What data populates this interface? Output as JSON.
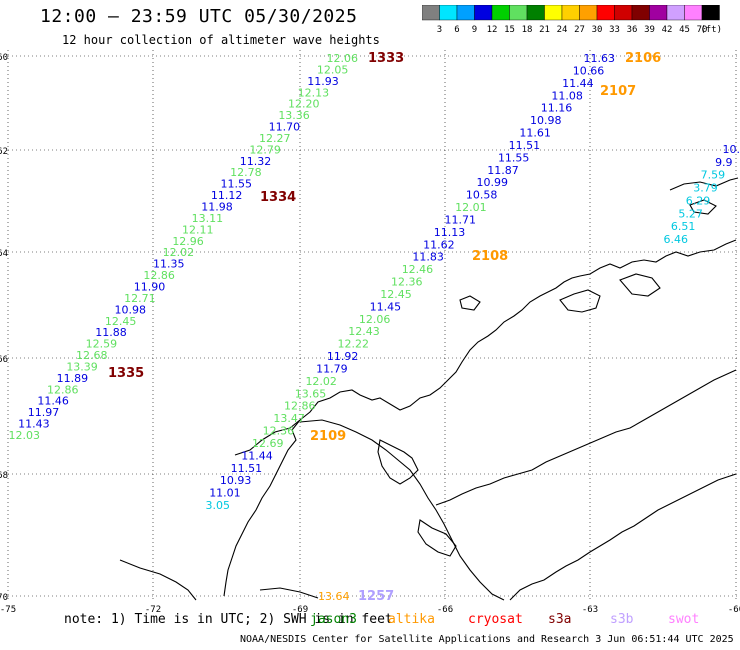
{
  "header": {
    "title": "12:00 — 23:59 UTC 05/30/2025",
    "subtitle": "12 hour collection of altimeter wave heights"
  },
  "legend": {
    "unit": "(ft)",
    "bins": [
      {
        "label": "3",
        "color": "#808080"
      },
      {
        "label": "6",
        "color": "#00e5ff"
      },
      {
        "label": "9",
        "color": "#00a0ff"
      },
      {
        "label": "12",
        "color": "#0000e0"
      },
      {
        "label": "15",
        "color": "#00d000"
      },
      {
        "label": "18",
        "color": "#60e060"
      },
      {
        "label": "21",
        "color": "#008000"
      },
      {
        "label": "24",
        "color": "#ffff00"
      },
      {
        "label": "27",
        "color": "#ffd000"
      },
      {
        "label": "30",
        "color": "#ffa000"
      },
      {
        "label": "33",
        "color": "#ff0000"
      },
      {
        "label": "36",
        "color": "#d00000"
      },
      {
        "label": "39",
        "color": "#800000"
      },
      {
        "label": "42",
        "color": "#a000a0"
      },
      {
        "label": "45",
        "color": "#d0a0ff"
      },
      {
        "label": "70",
        "color": "#ff80ff"
      },
      {
        "label": "",
        "color": "#000000"
      }
    ]
  },
  "axes": {
    "lat_labels": [
      "-60",
      "-62",
      "-64",
      "-66",
      "-68",
      "-70"
    ],
    "lon_labels": [
      "-75",
      "-72",
      "-69",
      "-66",
      "-63",
      "-60"
    ]
  },
  "tracks": [
    {
      "label": "1333",
      "color": "#800000"
    },
    {
      "label": "1334",
      "color": "#800000"
    },
    {
      "label": "1335",
      "color": "#800000"
    },
    {
      "label": "2106",
      "color": "#ff9900"
    },
    {
      "label": "2107",
      "color": "#ff9900"
    },
    {
      "label": "2108",
      "color": "#ff9900"
    },
    {
      "label": "2109",
      "color": "#ff9900"
    },
    {
      "label": "1257",
      "color": "#b0a0ff"
    }
  ],
  "readings_track1": [
    [
      "12.06",
      "#60e060"
    ],
    [
      "12.05",
      "#60e060"
    ],
    [
      "11.93",
      "#0000e0"
    ],
    [
      "12.13",
      "#60e060"
    ],
    [
      "12.20",
      "#60e060"
    ],
    [
      "13.36",
      "#60e060"
    ],
    [
      "11.70",
      "#0000e0"
    ],
    [
      "12.27",
      "#60e060"
    ],
    [
      "12.79",
      "#60e060"
    ],
    [
      "11.32",
      "#0000e0"
    ],
    [
      "12.78",
      "#60e060"
    ],
    [
      "11.55",
      "#0000e0"
    ],
    [
      "11.12",
      "#0000e0"
    ],
    [
      "11.98",
      "#0000e0"
    ],
    [
      "13.11",
      "#60e060"
    ],
    [
      "12.11",
      "#60e060"
    ],
    [
      "12.96",
      "#60e060"
    ],
    [
      "12.02",
      "#60e060"
    ],
    [
      "11.35",
      "#0000e0"
    ],
    [
      "12.86",
      "#60e060"
    ],
    [
      "11.90",
      "#0000e0"
    ],
    [
      "12.71",
      "#60e060"
    ],
    [
      "10.98",
      "#0000e0"
    ],
    [
      "12.45",
      "#60e060"
    ],
    [
      "11.88",
      "#0000e0"
    ],
    [
      "12.59",
      "#60e060"
    ],
    [
      "12.68",
      "#60e060"
    ],
    [
      "13.39",
      "#60e060"
    ],
    [
      "11.89",
      "#0000e0"
    ],
    [
      "12.86",
      "#60e060"
    ],
    [
      "11.46",
      "#0000e0"
    ],
    [
      "11.97",
      "#0000e0"
    ],
    [
      "11.43",
      "#0000e0"
    ],
    [
      "12.03",
      "#60e060"
    ]
  ],
  "readings_track2": [
    [
      "11.63",
      "#0000e0"
    ],
    [
      "10.66",
      "#0000e0"
    ],
    [
      "11.44",
      "#0000e0"
    ],
    [
      "11.08",
      "#0000e0"
    ],
    [
      "11.16",
      "#0000e0"
    ],
    [
      "10.98",
      "#0000e0"
    ],
    [
      "11.61",
      "#0000e0"
    ],
    [
      "11.51",
      "#0000e0"
    ],
    [
      "11.55",
      "#0000e0"
    ],
    [
      "11.87",
      "#0000e0"
    ],
    [
      "10.99",
      "#0000e0"
    ],
    [
      "10.58",
      "#0000e0"
    ],
    [
      "12.01",
      "#60e060"
    ],
    [
      "11.71",
      "#0000e0"
    ],
    [
      "11.13",
      "#0000e0"
    ],
    [
      "11.62",
      "#0000e0"
    ],
    [
      "11.83",
      "#0000e0"
    ],
    [
      "12.46",
      "#60e060"
    ],
    [
      "12.36",
      "#60e060"
    ],
    [
      "12.45",
      "#60e060"
    ],
    [
      "11.45",
      "#0000e0"
    ],
    [
      "12.06",
      "#60e060"
    ],
    [
      "12.43",
      "#60e060"
    ],
    [
      "12.22",
      "#60e060"
    ],
    [
      "11.92",
      "#0000e0"
    ],
    [
      "11.79",
      "#0000e0"
    ],
    [
      "12.02",
      "#60e060"
    ],
    [
      "13.65",
      "#60e060"
    ],
    [
      "12.86",
      "#60e060"
    ],
    [
      "13.47",
      "#60e060"
    ],
    [
      "12.36",
      "#60e060"
    ],
    [
      "12.69",
      "#60e060"
    ],
    [
      "11.44",
      "#0000e0"
    ],
    [
      "11.51",
      "#0000e0"
    ],
    [
      "10.93",
      "#0000e0"
    ],
    [
      "11.01",
      "#0000e0"
    ],
    [
      "3.05",
      "#00c8e0"
    ]
  ],
  "readings_track3": [
    [
      "10.",
      "#0000e0"
    ],
    [
      "9.9",
      "#0000e0"
    ],
    [
      "7.59",
      "#00c8e0"
    ],
    [
      "3.79",
      "#00c8e0"
    ],
    [
      "6.29",
      "#00c8e0"
    ],
    [
      "5.27",
      "#00c8e0"
    ],
    [
      "6.51",
      "#00c8e0"
    ],
    [
      "6.46",
      "#00c8e0"
    ]
  ],
  "bottom_value": {
    "text": "13.64",
    "color": "#ffa000"
  },
  "note": "note: 1) Time is in UTC; 2) SWH is in feet",
  "satellites": [
    {
      "name": "jason3",
      "color": "#008000"
    },
    {
      "name": "altika",
      "color": "#ff9900"
    },
    {
      "name": "cryosat",
      "color": "#ff0000"
    },
    {
      "name": "s3a",
      "color": "#800000"
    },
    {
      "name": "s3b",
      "color": "#c0a0ff"
    },
    {
      "name": "swot",
      "color": "#ff80ff"
    }
  ],
  "credit": "NOAA/NESDIS Center for Satellite Applications and Research    3 Jun 06:51:44 UTC 2025"
}
